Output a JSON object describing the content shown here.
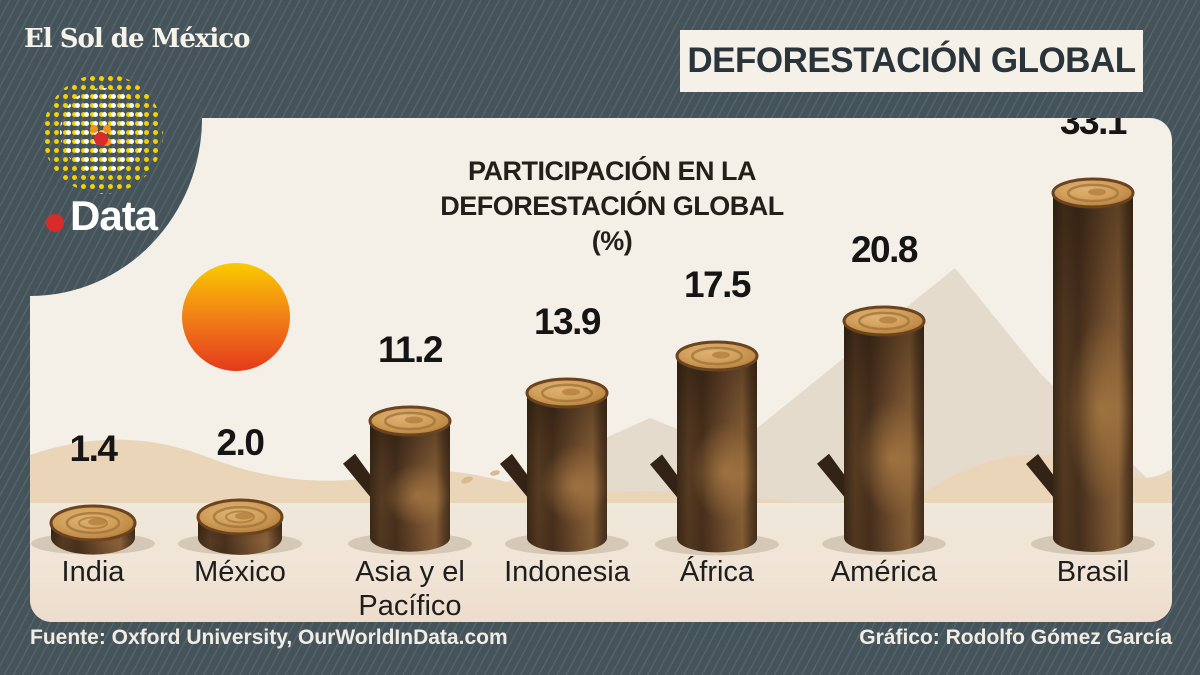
{
  "brand": {
    "masthead": "El Sol de México",
    "sub_brand": "Data"
  },
  "badge": {
    "title": "DEFORESTACIÓN GLOBAL"
  },
  "chart_data": {
    "type": "bar",
    "title": "PARTICIPACIÓN EN LA DEFORESTACIÓN GLOBAL (%)",
    "title_lines": [
      "PARTICIPACIÓN EN LA",
      "DEFORESTACIÓN GLOBAL (%)"
    ],
    "categories": [
      "India",
      "México",
      "Asia y el Pacífico",
      "Indonesia",
      "África",
      "América",
      "Brasil"
    ],
    "values": [
      1.4,
      2.0,
      11.2,
      13.9,
      17.5,
      20.8,
      33.1
    ],
    "unit": "%",
    "ylim": [
      0,
      33.1
    ],
    "bar_style": "tree-trunk-illustration",
    "value_labels_shown": true,
    "grid": false,
    "legend": false
  },
  "footer": {
    "source": "Fuente: Oxford University, OurWorldInData.com",
    "credit": "Gráfico: Rodolfo Gómez García"
  },
  "colors": {
    "background": "#45545B",
    "panel": "#F4F0E7",
    "badge_bg": "#F5F1E8",
    "text_dark": "#231F1A",
    "text_light": "#F1EDE3",
    "accent_red": "#D92B27",
    "logo_yellow": "#F2D200",
    "sun_top": "#FACB00",
    "sun_bottom": "#E43A1B",
    "trunk_dark": "#3B2917",
    "trunk_light": "#8A6238",
    "trunk_top_face": "#D2A15C",
    "mountain": "#E4D9CA",
    "dune": "#EAD5B8"
  }
}
